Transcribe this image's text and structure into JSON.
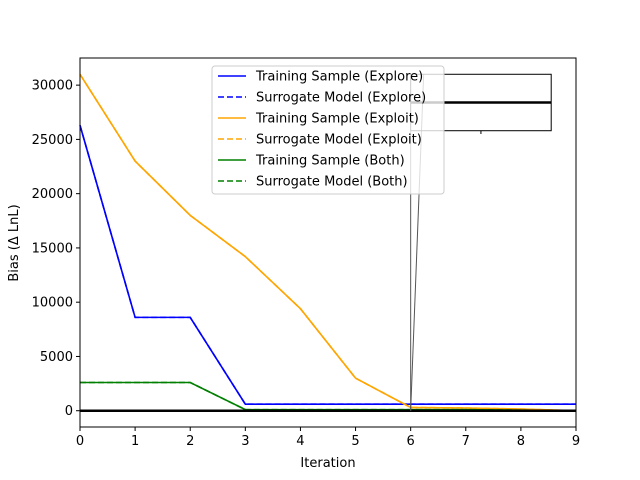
{
  "chart_data": {
    "type": "line",
    "xlabel": "Iteration",
    "ylabel": "Bias (Δ LnL)",
    "xlim": [
      0,
      9
    ],
    "ylim": [
      -1500,
      32500
    ],
    "xticks": [
      0,
      1,
      2,
      3,
      4,
      5,
      6,
      7,
      8,
      9
    ],
    "yticks": [
      0,
      5000,
      10000,
      15000,
      20000,
      25000,
      30000
    ],
    "ytick_labels": [
      "0",
      "5000",
      "10000",
      "15000",
      "20000",
      "25000",
      "30000"
    ],
    "legend_position": "upper center",
    "series": [
      {
        "name": "Training Sample (Explore)",
        "color": "#0000ff",
        "dash": "solid",
        "x": [
          0,
          1,
          2,
          3,
          4,
          5,
          6,
          7,
          8,
          9
        ],
        "y": [
          26300,
          8600,
          8600,
          600,
          600,
          600,
          600,
          600,
          600,
          600
        ]
      },
      {
        "name": "Surrogate Model (Explore)",
        "color": "#0000ff",
        "dash": "dashed",
        "x": [
          0,
          1,
          2,
          3,
          4,
          5,
          6,
          7,
          8,
          9
        ],
        "y": [
          26300,
          8600,
          8600,
          600,
          600,
          600,
          600,
          600,
          600,
          600
        ]
      },
      {
        "name": "Training Sample (Exploit)",
        "color": "#ffa500",
        "dash": "solid",
        "x": [
          0,
          1,
          2,
          3,
          4,
          5,
          6,
          7,
          8,
          9
        ],
        "y": [
          31000,
          23000,
          18000,
          14200,
          9400,
          3000,
          300,
          250,
          150,
          0
        ]
      },
      {
        "name": "Surrogate Model (Exploit)",
        "color": "#ffa500",
        "dash": "dashed",
        "x": [
          0,
          1,
          2,
          3,
          4,
          5,
          6,
          7,
          8,
          9
        ],
        "y": [
          31000,
          23000,
          18000,
          14200,
          9400,
          3000,
          300,
          250,
          150,
          0
        ]
      },
      {
        "name": "Training Sample (Both)",
        "color": "#008000",
        "dash": "solid",
        "x": [
          0,
          1,
          2,
          3,
          4,
          5,
          6,
          7,
          8,
          9
        ],
        "y": [
          2600,
          2600,
          2600,
          100,
          100,
          100,
          100,
          100,
          50,
          0
        ]
      },
      {
        "name": "Surrogate Model (Both)",
        "color": "#008000",
        "dash": "dashed",
        "x": [
          0,
          1,
          2,
          3,
          4,
          5,
          6,
          7,
          8,
          9
        ],
        "y": [
          2600,
          2600,
          2600,
          100,
          100,
          100,
          100,
          100,
          50,
          0
        ]
      }
    ],
    "baseline": {
      "y": 0,
      "color": "#000000"
    },
    "inset_box": {
      "x_range": [
        6.0,
        8.55
      ],
      "y_range": [
        25800,
        31000
      ],
      "median": 28400,
      "whisker": 25500,
      "connector_from": [
        6.0,
        0
      ],
      "color": "#000000"
    }
  }
}
